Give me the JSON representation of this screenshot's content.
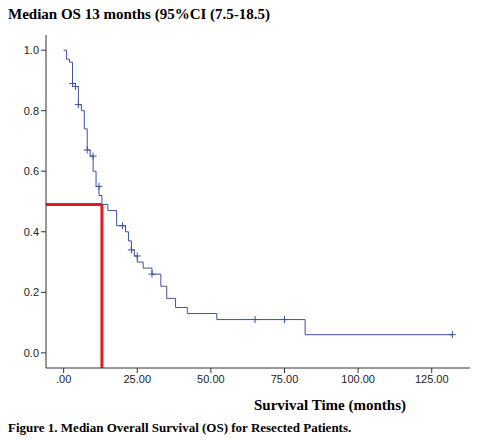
{
  "chart_data": {
    "type": "line",
    "title": "Median OS 13 months (95%CI (7.5-18.5)",
    "caption": "Figure 1. Median Overall Survival (OS) for Resected Patients.",
    "x_label": "Survival Time (months)",
    "line_style": "step",
    "color": "#3f51a3",
    "x": [
      0,
      1,
      2,
      3,
      4,
      5,
      6,
      7,
      8,
      9,
      10,
      11,
      12,
      13,
      15,
      18,
      21,
      22,
      23,
      24,
      25,
      27,
      30,
      33,
      35,
      38,
      42,
      52,
      82,
      132
    ],
    "values": [
      1.0,
      0.97,
      0.96,
      0.89,
      0.88,
      0.82,
      0.8,
      0.74,
      0.67,
      0.65,
      0.6,
      0.55,
      0.52,
      0.49,
      0.47,
      0.42,
      0.4,
      0.37,
      0.34,
      0.32,
      0.3,
      0.28,
      0.26,
      0.22,
      0.18,
      0.15,
      0.13,
      0.11,
      0.06,
      0.06
    ],
    "censored": {
      "marker": "plus",
      "x": [
        3,
        4,
        5,
        8,
        10,
        12,
        20,
        23,
        25,
        30,
        65,
        75,
        132
      ],
      "values": [
        0.89,
        0.88,
        0.82,
        0.67,
        0.65,
        0.55,
        0.42,
        0.34,
        0.32,
        0.26,
        0.11,
        0.11,
        0.06
      ]
    },
    "median_line": {
      "x": 13,
      "y": 0.49,
      "color": "#e31a1c"
    },
    "xlim": [
      -6,
      138
    ],
    "ylim": [
      -0.05,
      1.05
    ],
    "xticks": [
      {
        "value": 0,
        "label": ".00"
      },
      {
        "value": 25,
        "label": "25.00"
      },
      {
        "value": 50,
        "label": "50.00"
      },
      {
        "value": 75,
        "label": "75.00"
      },
      {
        "value": 100,
        "label": "100.00"
      },
      {
        "value": 125,
        "label": "125.00"
      }
    ],
    "yticks": [
      {
        "value": 0,
        "label": "0.0"
      },
      0.2,
      0.4,
      0.6,
      0.8,
      {
        "value": 1,
        "label": "1.0"
      }
    ],
    "grid": false
  }
}
